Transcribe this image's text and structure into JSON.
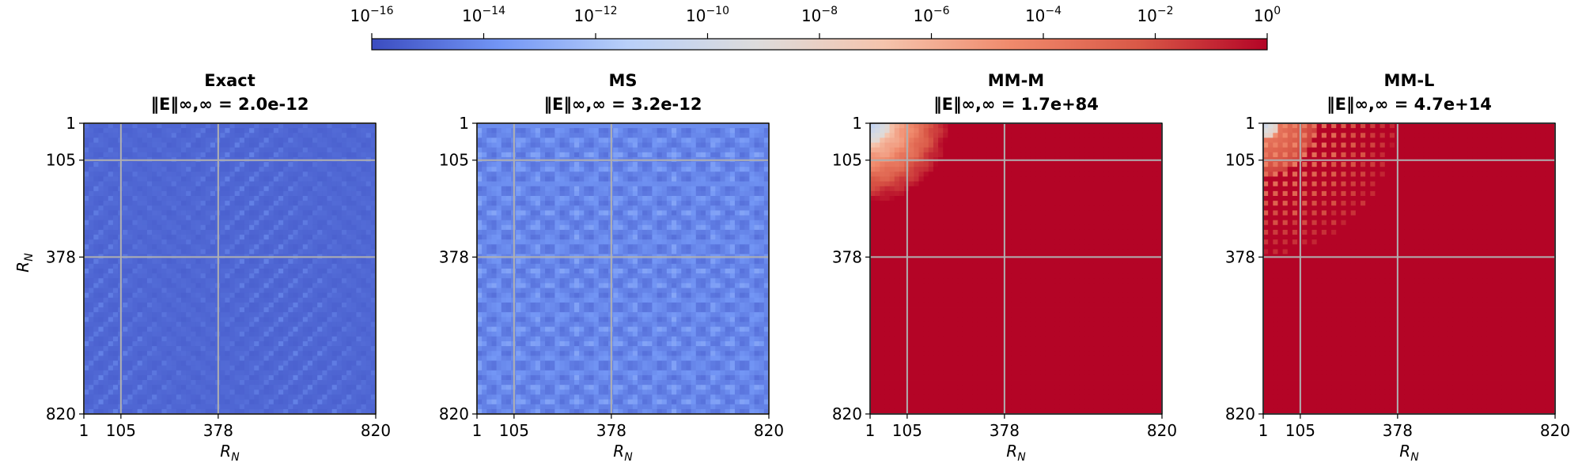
{
  "colorbar": {
    "scale": "log",
    "range": [
      1e-16,
      1
    ],
    "colormap": "coolwarm",
    "colors": [
      "#3b4cc0",
      "#7396f5",
      "#b9d0f9",
      "#dddcdc",
      "#f5c4ad",
      "#f08a6c",
      "#d95847",
      "#b40426"
    ],
    "ticks": [
      {
        "base": "10",
        "exp": "−16"
      },
      {
        "base": "10",
        "exp": "−14"
      },
      {
        "base": "10",
        "exp": "−12"
      },
      {
        "base": "10",
        "exp": "−10"
      },
      {
        "base": "10",
        "exp": "−8"
      },
      {
        "base": "10",
        "exp": "−6"
      },
      {
        "base": "10",
        "exp": "−4"
      },
      {
        "base": "10",
        "exp": "−2"
      },
      {
        "base": "10",
        "exp": "0"
      }
    ]
  },
  "chart_data": [
    {
      "type": "heatmap",
      "title": "Exact",
      "subtitle": "‖E‖∞,∞ = 2.0e-12",
      "xlabel": "R_N",
      "ylabel": "R_N",
      "xlim": [
        1,
        820
      ],
      "ylim": [
        820,
        1
      ],
      "ticks": [
        "1",
        "105",
        "378",
        "820"
      ],
      "grid": true,
      "pattern": "uniform-low"
    },
    {
      "type": "heatmap",
      "title": "MS",
      "subtitle": "‖E‖∞,∞ = 3.2e-12",
      "xlabel": "R_N",
      "ylabel": "",
      "xlim": [
        1,
        820
      ],
      "ylim": [
        820,
        1
      ],
      "ticks": [
        "1",
        "105",
        "378",
        "820"
      ],
      "grid": true,
      "pattern": "uniform-low-light"
    },
    {
      "type": "heatmap",
      "title": "MM-M",
      "subtitle": "‖E‖∞,∞ = 1.7e+84",
      "xlabel": "R_N",
      "ylabel": "",
      "xlim": [
        1,
        820
      ],
      "ylim": [
        820,
        1
      ],
      "ticks": [
        "1",
        "105",
        "378",
        "820"
      ],
      "grid": true,
      "pattern": "corner-blowup"
    },
    {
      "type": "heatmap",
      "title": "MM-L",
      "subtitle": "‖E‖∞,∞ = 4.7e+14",
      "xlabel": "R_N",
      "ylabel": "",
      "xlim": [
        1,
        820
      ],
      "ylim": [
        820,
        1
      ],
      "ticks": [
        "1",
        "105",
        "378",
        "820"
      ],
      "grid": true,
      "pattern": "dotted-blowup"
    }
  ]
}
